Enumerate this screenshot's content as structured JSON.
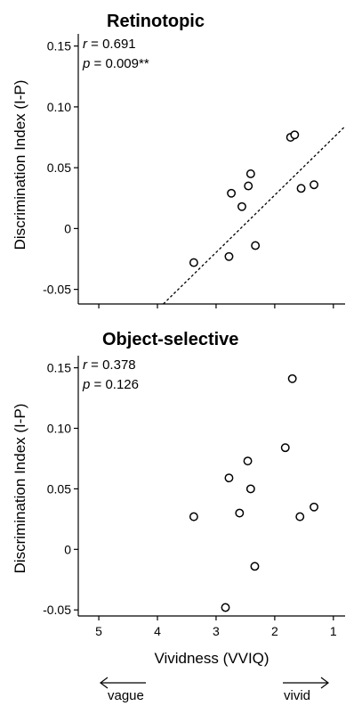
{
  "chart_data": [
    {
      "type": "scatter",
      "title": "Retinotopic",
      "ylabel": "Discrimination Index (I-P)",
      "xlabel": "",
      "x_reversed": true,
      "xlim": [
        5.35,
        0.8
      ],
      "ylim": [
        -0.062,
        0.16
      ],
      "x_ticks": [
        5,
        4,
        3,
        2,
        1
      ],
      "y_ticks": [
        0.15,
        0.1,
        0.05,
        0,
        -0.05
      ],
      "y_tick_labels": [
        "0.15",
        "0.10",
        "0.05",
        "0",
        "-0.05"
      ],
      "show_x_tick_labels": false,
      "stats": {
        "r_label": "r",
        "r_value": " = 0.691",
        "p_label": "p",
        "p_value": " = 0.009**"
      },
      "regression_line": {
        "style": "dotted",
        "x": [
          3.9,
          0.8
        ],
        "y": [
          -0.062,
          0.084
        ]
      },
      "x": [
        3.38,
        2.78,
        2.74,
        2.56,
        2.45,
        2.41,
        2.33,
        1.73,
        1.66,
        1.55,
        1.33
      ],
      "y": [
        -0.028,
        -0.023,
        0.029,
        0.018,
        0.035,
        0.045,
        -0.014,
        0.075,
        0.077,
        0.033,
        0.036
      ]
    },
    {
      "type": "scatter",
      "title": "Object-selective",
      "ylabel": "Discrimination Index (I-P)",
      "xlabel": "Vividness (VVIQ)",
      "x_reversed": true,
      "xlim": [
        5.35,
        0.8
      ],
      "ylim": [
        -0.055,
        0.16
      ],
      "x_ticks": [
        5,
        4,
        3,
        2,
        1
      ],
      "x_tick_labels": [
        "5",
        "4",
        "3",
        "2",
        "1"
      ],
      "y_ticks": [
        0.15,
        0.1,
        0.05,
        0,
        -0.05
      ],
      "y_tick_labels": [
        "0.15",
        "0.10",
        "0.05",
        "0",
        "-0.05"
      ],
      "show_x_tick_labels": true,
      "stats": {
        "r_label": "r",
        "r_value": " = 0.378",
        "p_label": "p",
        "p_value": " = 0.126"
      },
      "x": [
        3.38,
        2.84,
        2.78,
        2.6,
        2.46,
        2.41,
        2.34,
        1.82,
        1.7,
        1.57,
        1.33
      ],
      "y": [
        0.027,
        -0.048,
        0.059,
        0.03,
        0.073,
        0.05,
        -0.014,
        0.084,
        0.141,
        0.027,
        0.035
      ]
    }
  ],
  "arrows": {
    "left_label": "vague",
    "right_label": "vivid"
  }
}
